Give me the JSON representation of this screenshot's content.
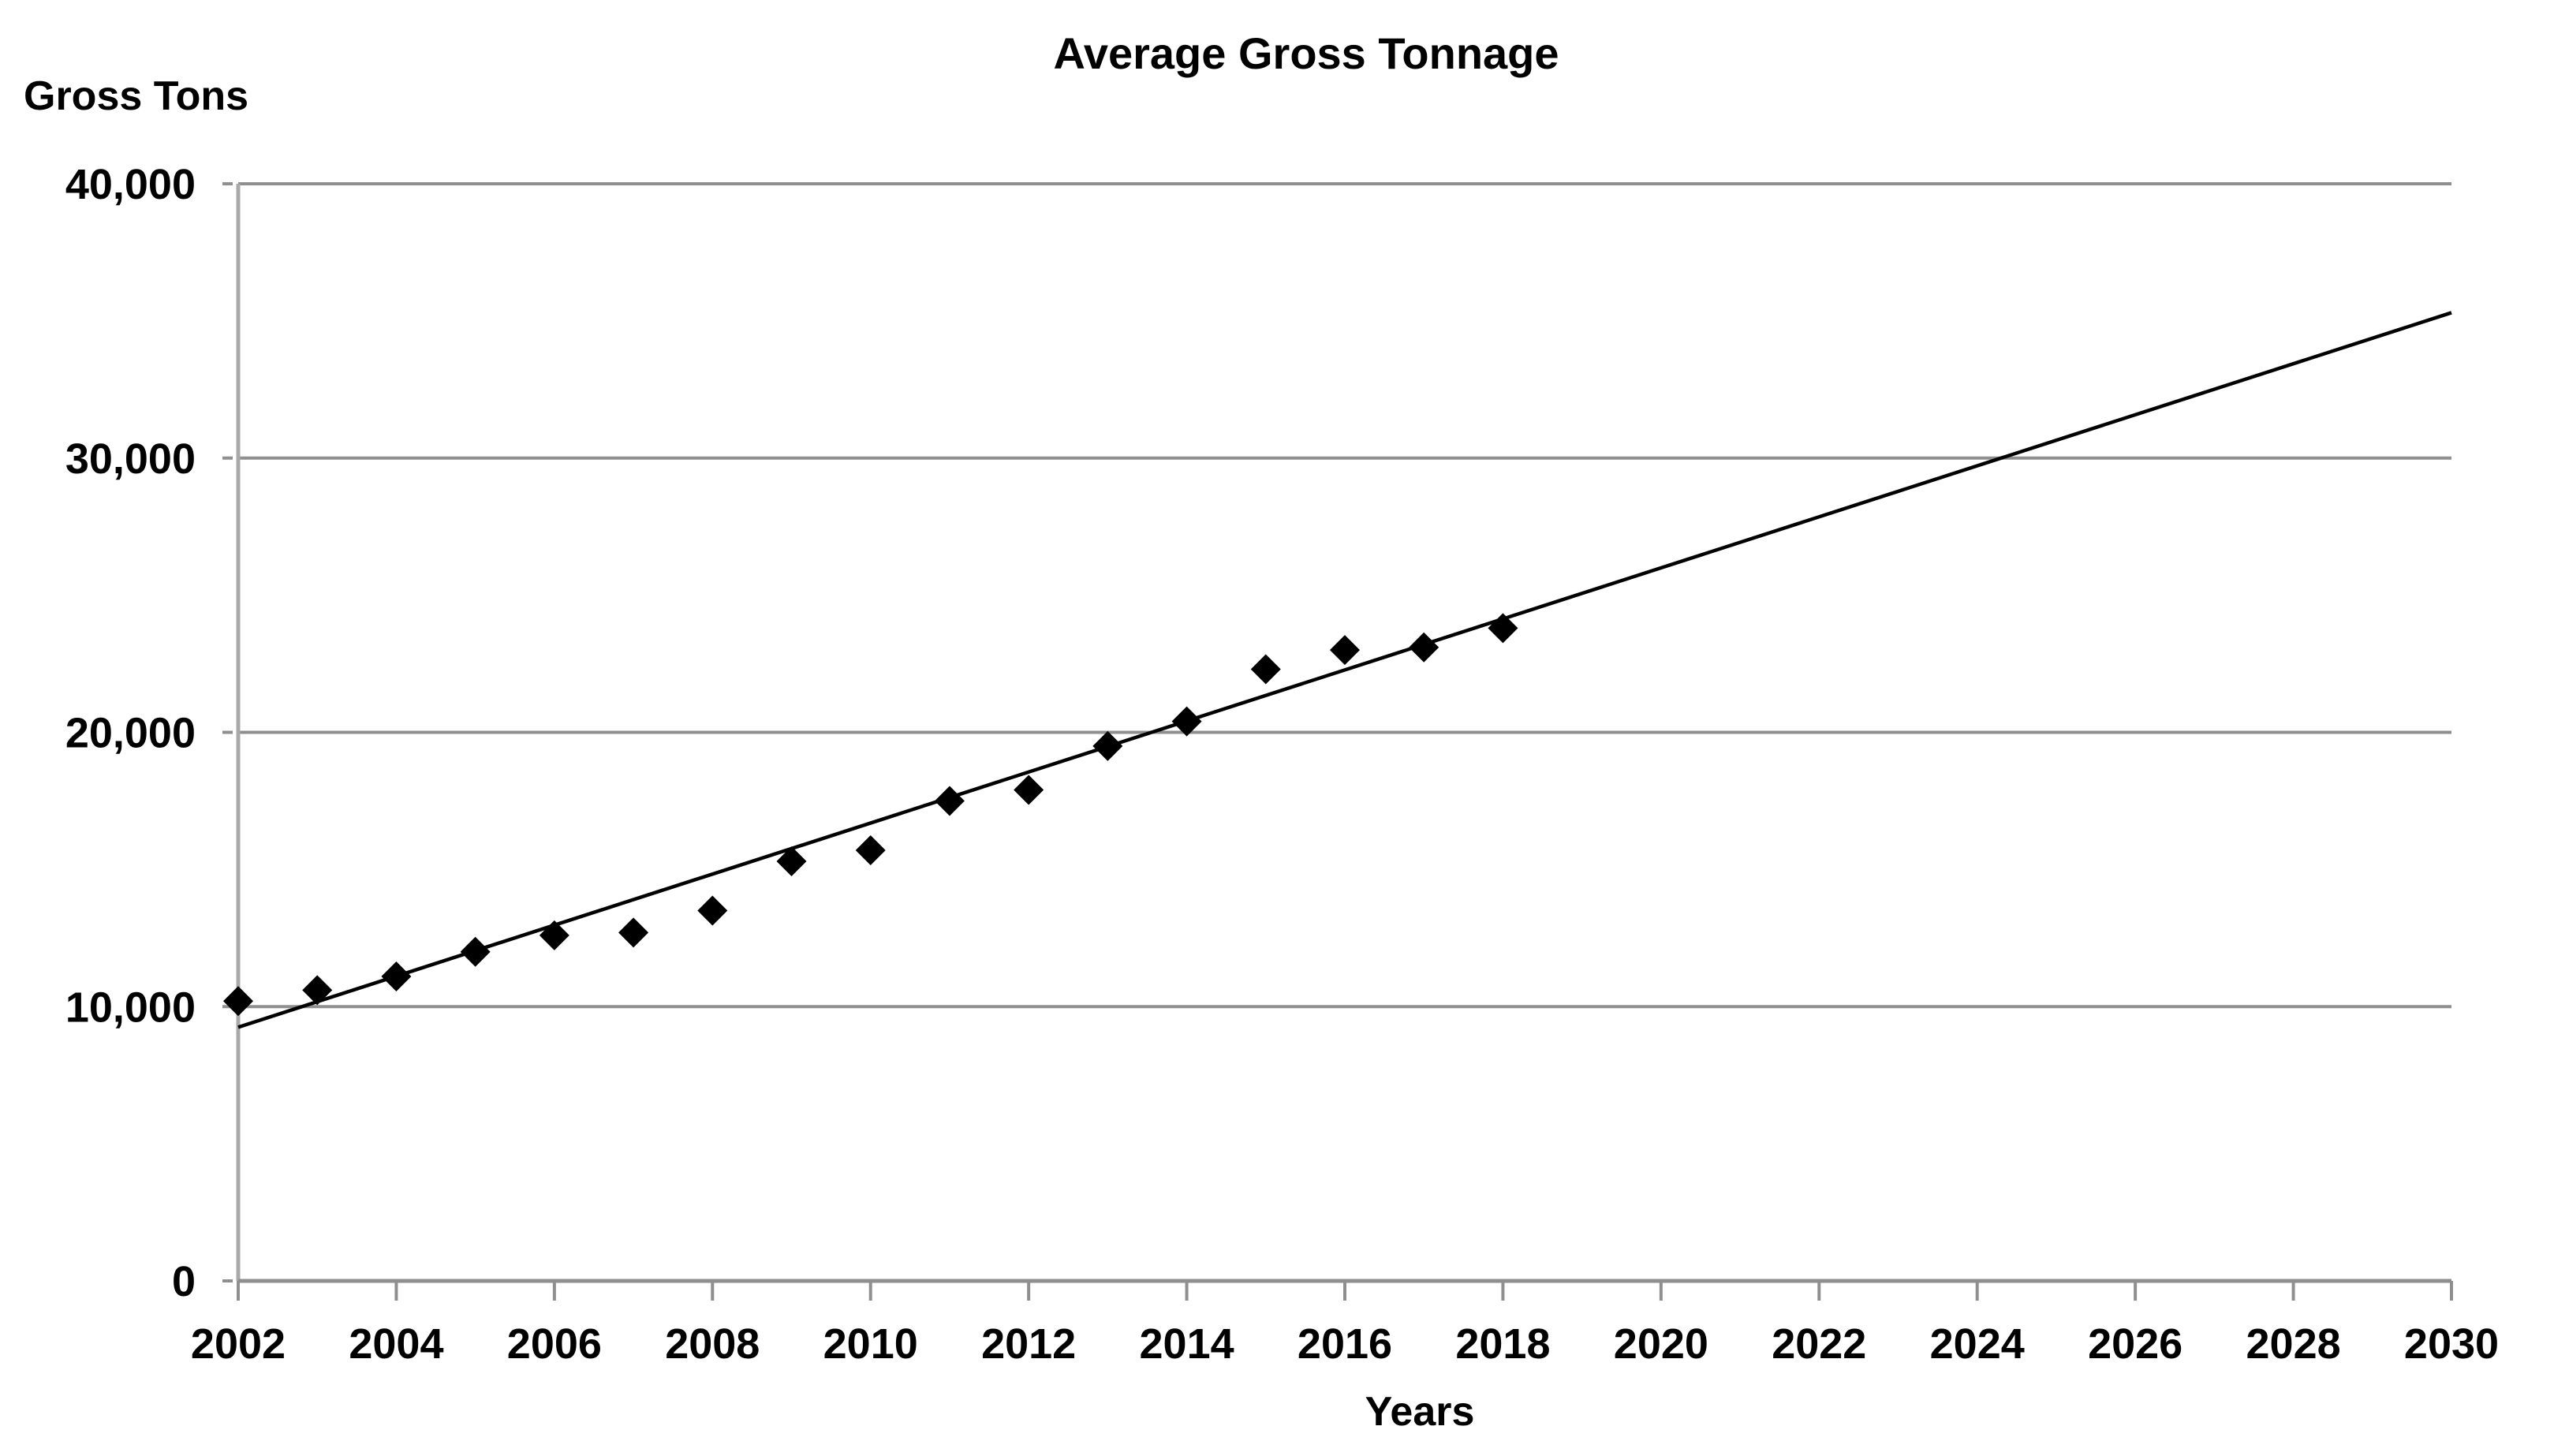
{
  "page": {
    "background_color": "#ffffff",
    "text_color": "#000000"
  },
  "chart_data": {
    "type": "scatter",
    "title": "Average Gross Tonnage",
    "xlabel": "Years",
    "ylabel": "Gross Tons",
    "x_range": [
      2002,
      2030
    ],
    "y_range": [
      0,
      40000
    ],
    "grid": "horizontal-only",
    "legend": "none",
    "marker": {
      "shape": "diamond",
      "color": "#000000",
      "size": 38
    },
    "x_ticks": [
      {
        "value": 2002,
        "label": "2002"
      },
      {
        "value": 2004,
        "label": "2004"
      },
      {
        "value": 2006,
        "label": "2006"
      },
      {
        "value": 2008,
        "label": "2008"
      },
      {
        "value": 2010,
        "label": "2010"
      },
      {
        "value": 2012,
        "label": "2012"
      },
      {
        "value": 2014,
        "label": "2014"
      },
      {
        "value": 2016,
        "label": "2016"
      },
      {
        "value": 2018,
        "label": "2018"
      },
      {
        "value": 2020,
        "label": "2020"
      },
      {
        "value": 2022,
        "label": "2022"
      },
      {
        "value": 2024,
        "label": "2024"
      },
      {
        "value": 2026,
        "label": "2026"
      },
      {
        "value": 2028,
        "label": "2028"
      },
      {
        "value": 2030,
        "label": "2030"
      }
    ],
    "y_ticks": [
      {
        "value": 40000,
        "label": "40,000"
      },
      {
        "value": 30000,
        "label": "30,000"
      },
      {
        "value": 20000,
        "label": "20,000"
      },
      {
        "value": 10000,
        "label": "10,000"
      },
      {
        "value": 0,
        "label": "0"
      }
    ],
    "series": [
      {
        "name": "Average Gross Tonnage",
        "points": [
          {
            "x": 2002,
            "y": 10200
          },
          {
            "x": 2003,
            "y": 10600
          },
          {
            "x": 2004,
            "y": 11100
          },
          {
            "x": 2005,
            "y": 12000
          },
          {
            "x": 2006,
            "y": 12600
          },
          {
            "x": 2007,
            "y": 12700
          },
          {
            "x": 2008,
            "y": 13500
          },
          {
            "x": 2009,
            "y": 15300
          },
          {
            "x": 2010,
            "y": 15700
          },
          {
            "x": 2011,
            "y": 17500
          },
          {
            "x": 2012,
            "y": 17900
          },
          {
            "x": 2013,
            "y": 19500
          },
          {
            "x": 2014,
            "y": 20400
          },
          {
            "x": 2015,
            "y": 22300
          },
          {
            "x": 2016,
            "y": 23000
          },
          {
            "x": 2017,
            "y": 23100
          },
          {
            "x": 2018,
            "y": 23800
          }
        ]
      }
    ],
    "trendline": {
      "type": "linear",
      "color": "#000000",
      "start": {
        "x": 2002,
        "y": 9250
      },
      "end": {
        "x": 2030,
        "y": 35300
      }
    }
  },
  "colors": {
    "gridline": "#8f8f8f",
    "axis_line": "#a9a9a9",
    "baseline": "#8f8f8f",
    "tick": "#8f8f8f"
  }
}
